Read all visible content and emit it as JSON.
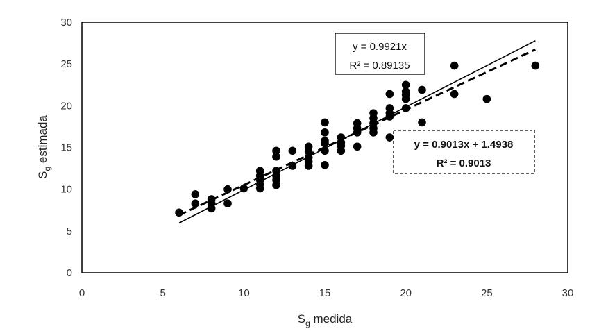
{
  "chart_data": {
    "type": "scatter",
    "xlabel": {
      "main": "S",
      "sub": "g",
      "rest": " medida"
    },
    "ylabel": {
      "main": "S",
      "sub": "g",
      "rest": " estimada"
    },
    "xlim": [
      0,
      30
    ],
    "ylim": [
      0,
      30
    ],
    "xticks": [
      "0",
      "5",
      "10",
      "15",
      "20",
      "25",
      "30"
    ],
    "yticks": [
      "0",
      "5",
      "10",
      "15",
      "20",
      "25",
      "30"
    ],
    "grid": false,
    "points": [
      [
        6,
        7.2
      ],
      [
        7,
        8.3
      ],
      [
        7,
        9.4
      ],
      [
        8,
        7.7
      ],
      [
        8,
        8.3
      ],
      [
        8,
        8.8
      ],
      [
        9,
        8.3
      ],
      [
        9,
        10
      ],
      [
        10,
        10.1
      ],
      [
        11,
        10.1
      ],
      [
        11,
        10.6
      ],
      [
        11,
        11.1
      ],
      [
        11,
        11.6
      ],
      [
        11,
        12.2
      ],
      [
        12,
        10.5
      ],
      [
        12,
        11.1
      ],
      [
        12,
        11.6
      ],
      [
        12,
        12.2
      ],
      [
        12,
        13.9
      ],
      [
        12,
        14.6
      ],
      [
        13,
        12.8
      ],
      [
        13,
        14.6
      ],
      [
        14,
        12.8
      ],
      [
        14,
        13.3
      ],
      [
        14,
        13.8
      ],
      [
        14,
        14.5
      ],
      [
        14,
        15.1
      ],
      [
        15,
        12.9
      ],
      [
        15,
        14.6
      ],
      [
        15,
        15.5
      ],
      [
        15,
        15.8
      ],
      [
        15,
        16.8
      ],
      [
        15,
        18
      ],
      [
        16,
        14.6
      ],
      [
        16,
        15.2
      ],
      [
        16,
        15.6
      ],
      [
        16,
        16.2
      ],
      [
        17,
        15.1
      ],
      [
        17,
        16.8
      ],
      [
        17,
        17.3
      ],
      [
        17,
        17.9
      ],
      [
        18,
        16.8
      ],
      [
        18,
        17.3
      ],
      [
        18,
        17.9
      ],
      [
        18,
        18.5
      ],
      [
        18,
        19.1
      ],
      [
        19,
        16.2
      ],
      [
        19,
        18.7
      ],
      [
        19,
        19.1
      ],
      [
        19,
        19.7
      ],
      [
        19,
        21.4
      ],
      [
        20,
        19.7
      ],
      [
        20,
        20.8
      ],
      [
        20,
        21.3
      ],
      [
        20,
        21.7
      ],
      [
        20,
        22.5
      ],
      [
        21,
        18
      ],
      [
        21,
        21.9
      ],
      [
        23,
        21.4
      ],
      [
        23,
        24.8
      ],
      [
        25,
        20.8
      ],
      [
        28,
        24.8
      ]
    ],
    "series": [
      {
        "style": "solid",
        "slope": 0.9921,
        "intercept": 0,
        "x_range": [
          6,
          28
        ]
      },
      {
        "style": "dashed",
        "slope": 0.9013,
        "intercept": 1.4938,
        "x_range": [
          6,
          28
        ]
      }
    ],
    "annotations": [
      {
        "style": "solid",
        "line1": "y = 0.9921x",
        "line2": "R² = 0.89135"
      },
      {
        "style": "dashed",
        "line1": "y = 0.9013x + 1.4938",
        "line2": "R² = 0.9013"
      }
    ]
  }
}
